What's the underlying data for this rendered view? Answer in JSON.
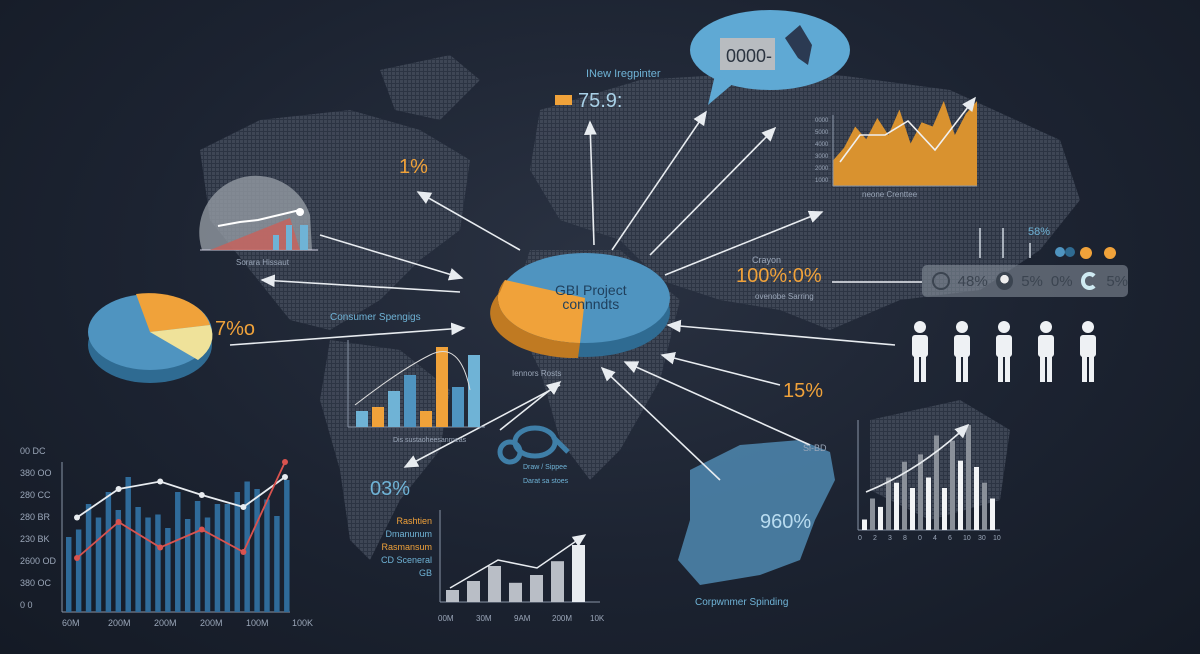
{
  "colors": {
    "background": "#1c2331",
    "accent_orange": "#f0a23a",
    "accent_blue": "#4f94c0",
    "map": "#3a4252",
    "arrow": "#e8ecf0",
    "red_line": "#d9534f"
  },
  "header": {
    "bubble_value": "0000-",
    "subtitle": "INew Iregpinter",
    "stat_value": "75.9:"
  },
  "labels": {
    "pct_1": "1%",
    "pct_7": "7%o",
    "pct_15": "15%",
    "pct_03": "03%",
    "pct_960": "960%",
    "pct_100": "100%:0%",
    "crayon": "Crayon",
    "ovenobe": "ovenobe Sarring",
    "consumer_spengigs": "Consumer Spengigs",
    "globe_caption": "Sorara Hissaut",
    "pie_title_line1": "GBI Project",
    "pie_title_line2": "connndts",
    "pie_caption": "Iennors Rosts",
    "loop_caption_1": "Draw / Sippee",
    "loop_caption_2": "Darat sa stoes",
    "area_caption": "neone Crenttee",
    "consumer_spending": "Corpwnmer Spinding",
    "si_bd": "Si-BD",
    "stat_58": "58%",
    "legend": [
      {
        "text": "Rashtien",
        "color": "#f0a23a"
      },
      {
        "text": "Dmanunum",
        "color": "#6fb3d6"
      },
      {
        "text": "Rasmansum",
        "color": "#f0a23a"
      },
      {
        "text": "CD Sceneral GB",
        "color": "#6fb3d6"
      }
    ],
    "mid_chart_caption": "Dis sustaoheesanrneas"
  },
  "stats_panel": [
    {
      "icon": "clock-icon",
      "value": "48%"
    },
    {
      "icon": "pie-icon",
      "value": "5%"
    },
    {
      "icon": "none",
      "value": "0%"
    },
    {
      "icon": "crescent-icon",
      "value": "5%"
    }
  ],
  "people_count": 5,
  "chart_data": [
    {
      "type": "bar",
      "name_hint": "bottom-left",
      "ytick_labels": [
        "00 DC",
        "380 OO",
        "280 CC",
        "280 BR",
        "230 BK",
        "2600 OD",
        "380 OC",
        "0   0"
      ],
      "xtick_labels": [
        "60M",
        "200M",
        "200M",
        "200M",
        "100M",
        "100K"
      ],
      "values": [
        0.5,
        0.55,
        0.72,
        0.63,
        0.8,
        0.68,
        0.9,
        0.7,
        0.63,
        0.65,
        0.56,
        0.8,
        0.62,
        0.74,
        0.63,
        0.72,
        0.72,
        0.8,
        0.87,
        0.82,
        0.75,
        0.64,
        0.88
      ],
      "series": [
        {
          "color": "#e8ecf0",
          "values": [
            0.63,
            0.82,
            0.87,
            0.78,
            0.7,
            0.9
          ]
        },
        {
          "color": "#d9534f",
          "values": [
            0.36,
            0.6,
            0.43,
            0.55,
            0.4,
            1.0
          ]
        }
      ]
    },
    {
      "type": "bar",
      "name_hint": "middle",
      "values": [
        0.2,
        0.25,
        0.45,
        0.65,
        0.2,
        1.0,
        0.5,
        0.9
      ]
    },
    {
      "type": "bar",
      "name_hint": "bottom-middle",
      "xtick_labels": [
        "00M",
        "30M",
        "9AM",
        "200M",
        "10K"
      ],
      "values": [
        0.2,
        0.35,
        0.6,
        0.32,
        0.45,
        0.68,
        0.95
      ]
    },
    {
      "type": "bar",
      "name_hint": "right",
      "xtick_labels": [
        "0",
        "2",
        "3",
        "8",
        "0",
        "4",
        "6",
        "10",
        "30",
        "10"
      ],
      "values": [
        0.1,
        0.3,
        0.22,
        0.5,
        0.45,
        0.65,
        0.4,
        0.72,
        0.5,
        0.9,
        0.4,
        0.85,
        0.66,
        1.0,
        0.6,
        0.45,
        0.3
      ]
    },
    {
      "type": "area",
      "name_hint": "top-right",
      "values": [
        0.3,
        0.45,
        0.7,
        0.55,
        0.8,
        0.6,
        0.9,
        0.5,
        0.75,
        0.7,
        1.0,
        0.6,
        0.85,
        1.0
      ]
    },
    {
      "type": "pie",
      "name_hint": "center",
      "values": [
        0.68,
        0.32
      ],
      "colors": [
        "#4f94c0",
        "#f0a23a"
      ]
    },
    {
      "type": "pie",
      "name_hint": "left",
      "values": [
        0.64,
        0.2,
        0.16
      ],
      "colors": [
        "#4f94c0",
        "#f0a23a",
        "#efe29a"
      ]
    }
  ]
}
